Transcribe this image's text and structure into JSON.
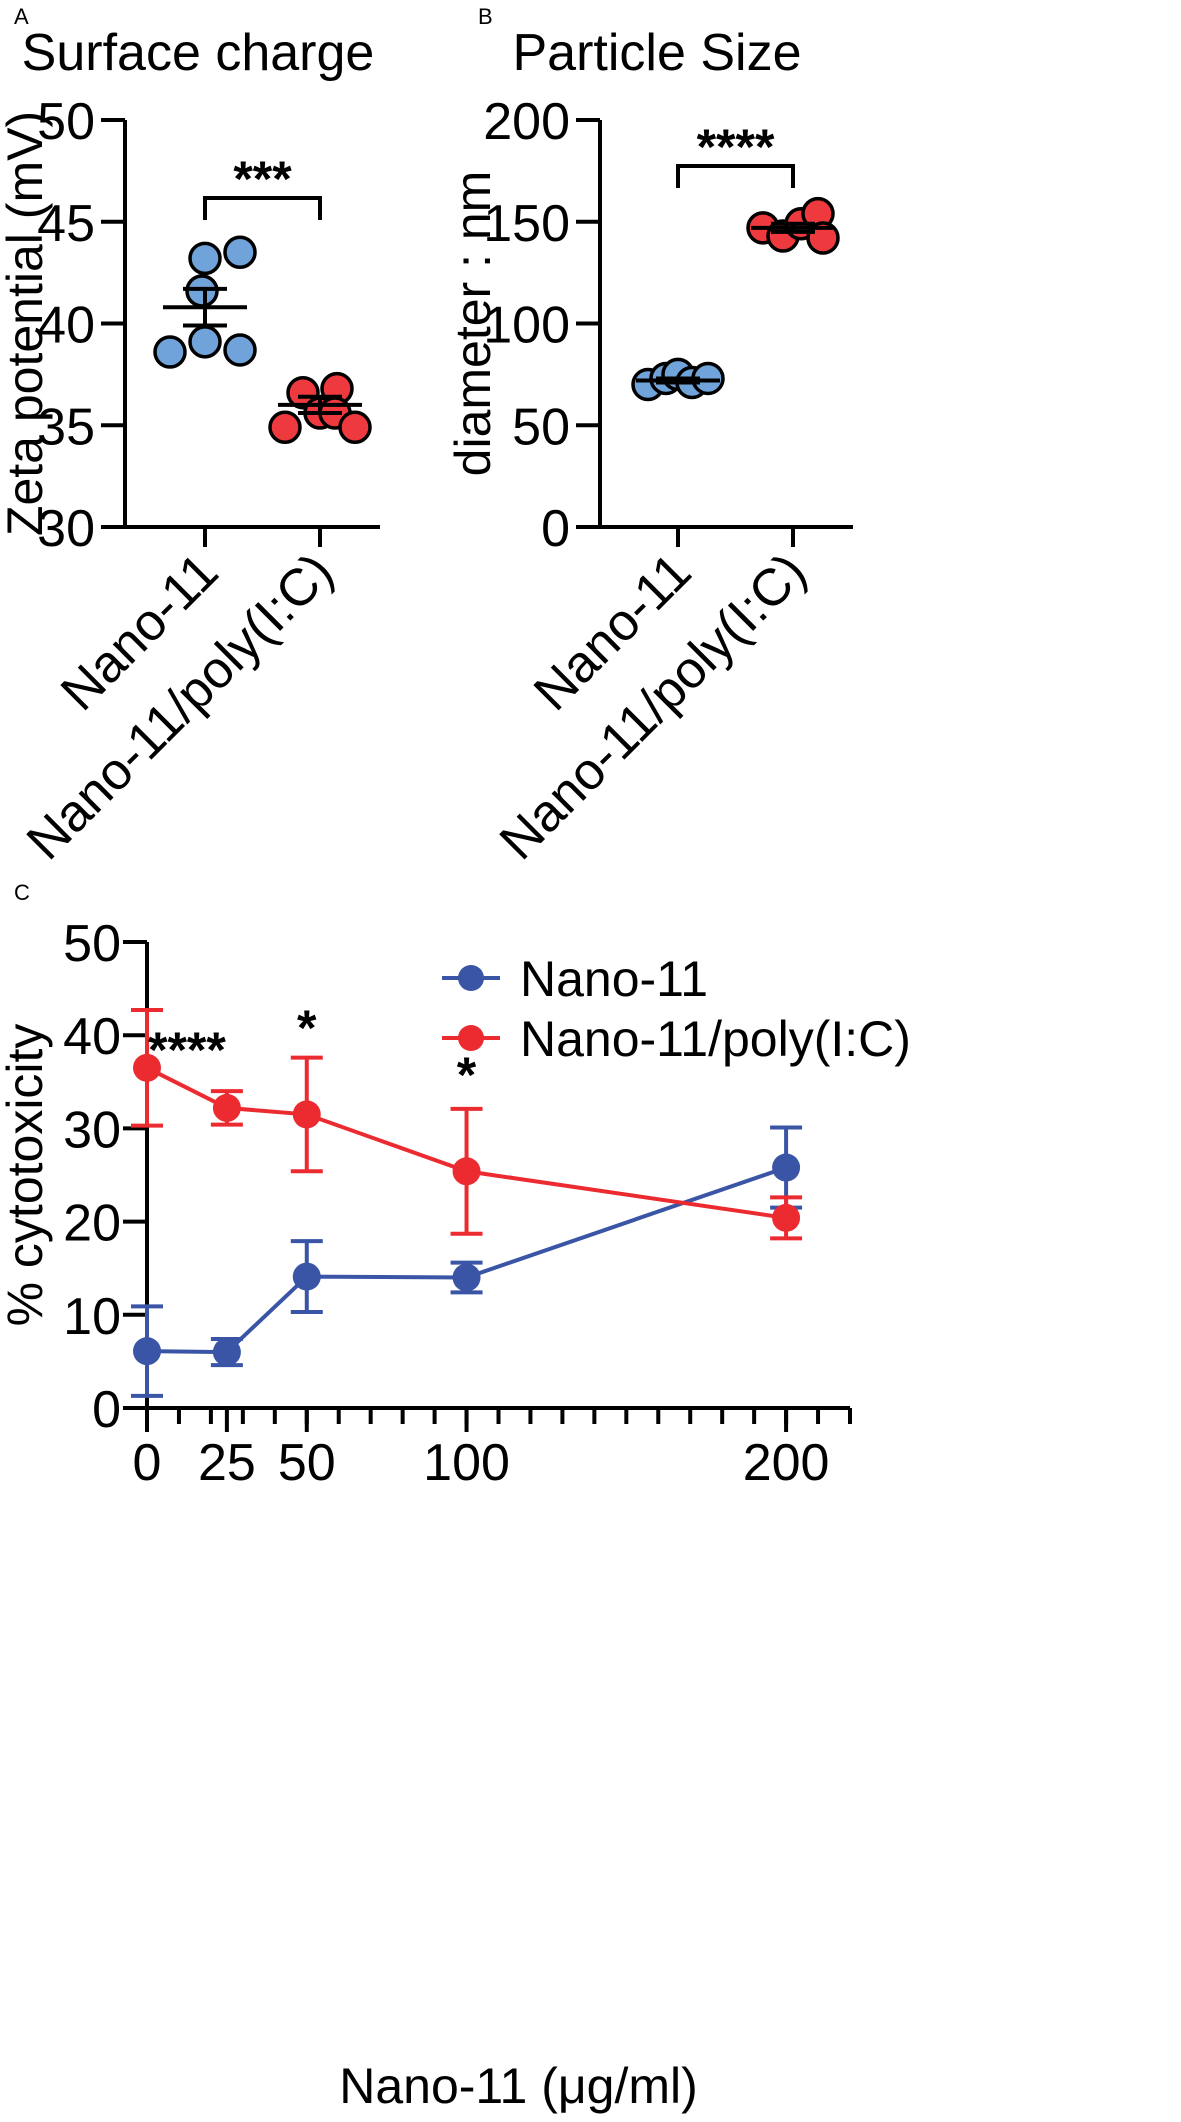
{
  "chart_data": [
    {
      "id": "A",
      "type": "scatter",
      "panel_label": "A",
      "title": "Surface charge",
      "ylabel": "Zeta potential (mV)",
      "xlabel": "",
      "ylim": [
        30,
        50
      ],
      "yticks": [
        30,
        35,
        40,
        45,
        50
      ],
      "categories": [
        "Nano-11",
        "Nano-11/poly(I:C)"
      ],
      "series": [
        {
          "name": "Nano-11",
          "color": "#6fa3da",
          "points": [
            43.5,
            43.2,
            41.6,
            39.1,
            38.6,
            38.7
          ],
          "mean": 40.8,
          "sem": 0.9
        },
        {
          "name": "Nano-11/poly(I:C)",
          "color": "#ee3a3e",
          "points": [
            36.8,
            36.6,
            35.6,
            35.6,
            34.9,
            34.9
          ],
          "mean": 36.0,
          "sem": 0.4
        }
      ],
      "significance": {
        "label": "***",
        "between": [
          0,
          1
        ]
      }
    },
    {
      "id": "B",
      "type": "scatter",
      "panel_label": "B",
      "title": "Particle Size",
      "ylabel": "diameter : nm",
      "xlabel": "",
      "ylim": [
        0,
        200
      ],
      "yticks": [
        0,
        50,
        100,
        150,
        200
      ],
      "categories": [
        "Nano-11",
        "Nano-11/poly(I:C)"
      ],
      "series": [
        {
          "name": "Nano-11",
          "color": "#6fa3da",
          "points": [
            70,
            73,
            75,
            71,
            73
          ],
          "mean": 72,
          "sem": 1
        },
        {
          "name": "Nano-11/poly(I:C)",
          "color": "#ee3a3e",
          "points": [
            147,
            143,
            149,
            154,
            142
          ],
          "mean": 147,
          "sem": 2
        }
      ],
      "significance": {
        "label": "****",
        "between": [
          0,
          1
        ]
      }
    },
    {
      "id": "C",
      "type": "line",
      "panel_label": "C",
      "title": "",
      "ylabel": "% cytotoxicity",
      "xlabel": "Nano-11 (μg/ml)",
      "ylim": [
        0,
        50
      ],
      "yticks": [
        0,
        10,
        20,
        30,
        40,
        50
      ],
      "xlim": [
        0,
        220
      ],
      "xticks": [
        0,
        25,
        50,
        100,
        200
      ],
      "x_minor_step": 10,
      "x": [
        0,
        25,
        50,
        100,
        200
      ],
      "series": [
        {
          "name": "Nano-11",
          "color": "#3a55a6",
          "values": [
            6.1,
            6.0,
            14.1,
            14.0,
            25.8
          ],
          "errors": [
            4.8,
            1.4,
            3.8,
            1.6,
            4.3
          ]
        },
        {
          "name": "Nano-11/poly(I:C)",
          "color": "#ec2b30",
          "values": [
            36.5,
            32.2,
            31.5,
            25.4,
            20.4
          ],
          "errors": [
            6.2,
            1.8,
            6.1,
            6.7,
            2.2
          ]
        }
      ],
      "annotations": [
        {
          "x": 12.5,
          "label": "****"
        },
        {
          "x": 50,
          "label": "*"
        },
        {
          "x": 100,
          "label": "*"
        }
      ],
      "legend": "top-right"
    }
  ]
}
